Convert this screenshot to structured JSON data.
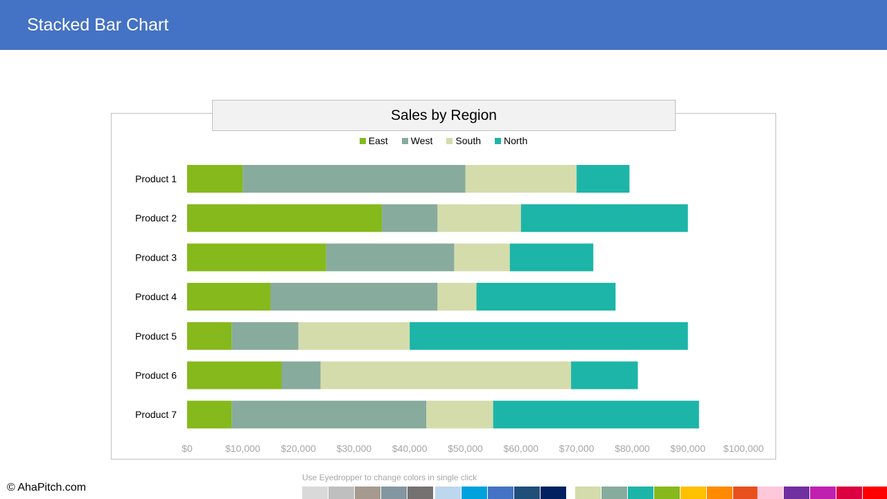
{
  "header": {
    "title": "Stacked Bar Chart"
  },
  "chart_data": {
    "type": "bar",
    "orientation": "horizontal",
    "stacked": true,
    "title": "Sales by Region",
    "legend_position": "top",
    "categories": [
      "Product 1",
      "Product 2",
      "Product 3",
      "Product 4",
      "Product 5",
      "Product 6",
      "Product 7"
    ],
    "series": [
      {
        "name": "East",
        "color": "#86B91C",
        "values": [
          10000,
          35000,
          25000,
          15000,
          8000,
          17000,
          8000
        ]
      },
      {
        "name": "West",
        "color": "#87AB9D",
        "values": [
          40000,
          10000,
          23000,
          30000,
          12000,
          7000,
          35000
        ]
      },
      {
        "name": "South",
        "color": "#D4DCAB",
        "values": [
          20000,
          15000,
          10000,
          7000,
          20000,
          45000,
          12000
        ]
      },
      {
        "name": "North",
        "color": "#1DB5A8",
        "values": [
          9500,
          30000,
          15000,
          25000,
          50000,
          12000,
          37000
        ]
      }
    ],
    "xlim": [
      0,
      100000
    ],
    "x_tick_labels": [
      "$0",
      "$10,000",
      "$20,000",
      "$30,000",
      "$40,000",
      "$50,000",
      "$60,000",
      "$70,000",
      "$80,000",
      "$90,000",
      "$100,000"
    ],
    "grid": false
  },
  "footer": {
    "copyright": "© AhaPitch.com",
    "palette_hint": "Use Eyedropper to change colors in single click"
  },
  "palette": [
    "#D9D9D9",
    "#BFBFBF",
    "#A69A8F",
    "#8497A0",
    "#767171",
    "#BDD7EE",
    "#00A2DE",
    "#4472C4",
    "#1F4E79",
    "#002060",
    "#D4DCAB",
    "#87AB9D",
    "#1DB5A8",
    "#86B91C",
    "#FFC000",
    "#FF8A00",
    "#E8501E",
    "#FFC7D9",
    "#7030A0",
    "#C020B0",
    "#DC0040",
    "#FF0000"
  ]
}
